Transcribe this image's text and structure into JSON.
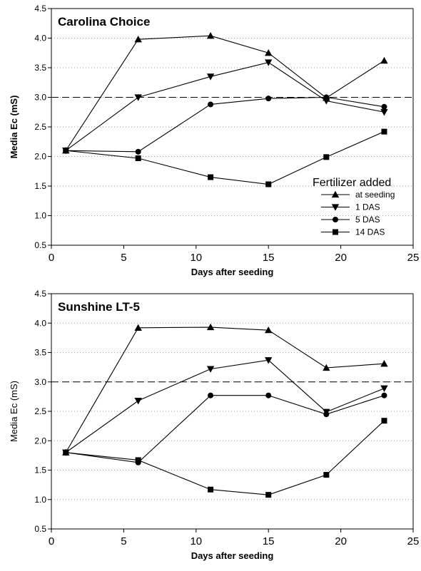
{
  "chart_data": [
    {
      "type": "line",
      "title": "Carolina Choice",
      "xlabel": "Days after seeding",
      "ylabel": "Media Ec (mS)",
      "ylabel_bold": true,
      "xlim": [
        0,
        25
      ],
      "ylim": [
        0.5,
        4.5
      ],
      "xticks": [
        0,
        5,
        10,
        15,
        20,
        25
      ],
      "xtick_labels": [
        "0",
        "5",
        "10",
        "15",
        "20",
        "25"
      ],
      "yticks": [
        0.5,
        1.0,
        1.5,
        2.0,
        2.5,
        3.0,
        3.5,
        4.0,
        4.5
      ],
      "ytick_labels": [
        "0.5",
        "1.0",
        "1.5",
        "2.0",
        "2.5",
        "3.0",
        "3.5",
        "4.0",
        "4.5"
      ],
      "grid": "horizontal dotted",
      "reference_line_y": 3.0,
      "legend": {
        "title": "Fertilizer added",
        "placement": "lower-right"
      },
      "series": [
        {
          "name": "at seeding",
          "marker": "triangle-up",
          "x": [
            1,
            6,
            11,
            15,
            19,
            23
          ],
          "y": [
            2.1,
            3.98,
            4.04,
            3.75,
            2.99,
            3.62
          ]
        },
        {
          "name": "1 DAS",
          "marker": "triangle-down",
          "x": [
            1,
            6,
            11,
            15,
            19,
            23
          ],
          "y": [
            2.1,
            3.0,
            3.35,
            3.59,
            2.94,
            2.75
          ]
        },
        {
          "name": "5 DAS",
          "marker": "circle",
          "x": [
            1,
            6,
            11,
            15,
            19,
            23
          ],
          "y": [
            2.1,
            2.08,
            2.88,
            2.98,
            3.0,
            2.84
          ]
        },
        {
          "name": "14 DAS",
          "marker": "square",
          "x": [
            1,
            6,
            11,
            15,
            19,
            23
          ],
          "y": [
            2.1,
            1.97,
            1.65,
            1.53,
            1.99,
            2.42
          ]
        }
      ]
    },
    {
      "type": "line",
      "title": "Sunshine LT-5",
      "xlabel": "Days after seeding",
      "ylabel": "Media Ec (mS)",
      "ylabel_bold": false,
      "xlim": [
        0,
        25
      ],
      "ylim": [
        0.5,
        4.5
      ],
      "xticks": [
        0,
        5,
        10,
        15,
        20,
        25
      ],
      "xtick_labels": [
        "0",
        "5",
        "10",
        "15",
        "20",
        "25"
      ],
      "yticks": [
        0.5,
        1.0,
        1.5,
        2.0,
        2.5,
        3.0,
        3.5,
        4.0,
        4.5
      ],
      "ytick_labels": [
        "0.5",
        "1.0",
        "1.5",
        "2.0",
        "2.5",
        "3.0",
        "3.5",
        "4.0",
        "4.5"
      ],
      "grid": "horizontal dotted",
      "reference_line_y": 3.0,
      "series": [
        {
          "name": "at seeding",
          "marker": "triangle-up",
          "x": [
            1,
            6,
            11,
            15,
            19,
            23
          ],
          "y": [
            1.8,
            3.92,
            3.93,
            3.88,
            3.24,
            3.31
          ]
        },
        {
          "name": "1 DAS",
          "marker": "triangle-down",
          "x": [
            1,
            6,
            11,
            15,
            19,
            23
          ],
          "y": [
            1.8,
            2.68,
            3.22,
            3.37,
            2.49,
            2.89
          ]
        },
        {
          "name": "5 DAS",
          "marker": "circle",
          "x": [
            1,
            6,
            11,
            15,
            19,
            23
          ],
          "y": [
            1.8,
            1.63,
            2.77,
            2.77,
            2.45,
            2.77
          ]
        },
        {
          "name": "14 DAS",
          "marker": "square",
          "x": [
            1,
            6,
            11,
            15,
            19,
            23
          ],
          "y": [
            1.8,
            1.67,
            1.17,
            1.08,
            1.42,
            2.34
          ]
        }
      ]
    }
  ]
}
